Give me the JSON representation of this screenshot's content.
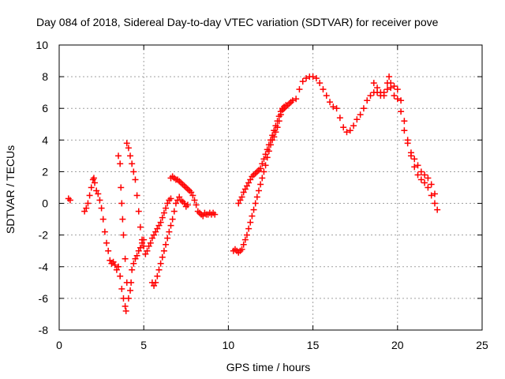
{
  "chart_data": {
    "type": "scatter",
    "title": "Day 084 of 2018, Sidereal Day-to-day VTEC variation (SDTVAR) for receiver pove",
    "xlabel": "GPS time / hours",
    "ylabel": "SDTVAR / TECUs",
    "xlim": [
      0,
      25
    ],
    "ylim": [
      -8,
      10
    ],
    "xticks": [
      "0",
      "5",
      "10",
      "15",
      "20",
      "25"
    ],
    "yticks": [
      "-8",
      "-6",
      "-4",
      "-2",
      "0",
      "2",
      "4",
      "6",
      "8",
      "10"
    ],
    "grid": true,
    "marker": "+",
    "color": "#ff0000",
    "series": [
      {
        "points": [
          [
            0.55,
            0.3
          ],
          [
            0.65,
            0.2
          ],
          [
            1.5,
            -0.5
          ],
          [
            1.6,
            -0.3
          ],
          [
            1.7,
            0.0
          ],
          [
            1.8,
            0.5
          ],
          [
            1.9,
            1.0
          ],
          [
            2.0,
            1.5
          ],
          [
            2.05,
            1.6
          ],
          [
            2.1,
            1.3
          ],
          [
            2.2,
            0.8
          ],
          [
            2.3,
            0.6
          ],
          [
            2.4,
            0.2
          ],
          [
            2.5,
            -0.3
          ],
          [
            2.6,
            -1.0
          ],
          [
            2.7,
            -1.8
          ],
          [
            2.8,
            -2.5
          ],
          [
            2.9,
            -3.0
          ],
          [
            3.0,
            -3.6
          ],
          [
            3.1,
            -3.8
          ],
          [
            3.2,
            -3.7
          ],
          [
            3.3,
            -3.9
          ],
          [
            3.4,
            -4.2
          ],
          [
            3.5,
            -4.0
          ],
          [
            3.6,
            -4.6
          ],
          [
            3.7,
            -5.4
          ],
          [
            3.8,
            -6.0
          ],
          [
            3.9,
            -6.5
          ],
          [
            3.95,
            -6.8
          ],
          [
            3.5,
            3.0
          ],
          [
            3.6,
            2.5
          ],
          [
            3.65,
            1.0
          ],
          [
            3.7,
            0.0
          ],
          [
            3.75,
            -1.0
          ],
          [
            3.8,
            -2.0
          ],
          [
            3.9,
            -3.5
          ],
          [
            4.0,
            -5.0
          ],
          [
            4.1,
            -6.0
          ],
          [
            4.2,
            -5.5
          ],
          [
            4.25,
            -5.0
          ],
          [
            4.3,
            -4.2
          ],
          [
            4.4,
            -3.8
          ],
          [
            4.5,
            -3.5
          ],
          [
            4.6,
            -3.3
          ],
          [
            4.7,
            -3.0
          ],
          [
            4.8,
            -2.8
          ],
          [
            4.9,
            -2.5
          ],
          [
            5.0,
            -2.3
          ],
          [
            4.0,
            3.8
          ],
          [
            4.1,
            3.5
          ],
          [
            4.2,
            3.0
          ],
          [
            4.3,
            2.5
          ],
          [
            4.4,
            2.0
          ],
          [
            4.5,
            1.5
          ],
          [
            4.6,
            0.5
          ],
          [
            4.7,
            -0.5
          ],
          [
            4.8,
            -1.5
          ],
          [
            4.9,
            -2.3
          ],
          [
            5.0,
            -2.7
          ],
          [
            5.1,
            -3.2
          ],
          [
            5.2,
            -3.0
          ],
          [
            5.3,
            -2.7
          ],
          [
            5.4,
            -2.5
          ],
          [
            5.5,
            -2.2
          ],
          [
            5.6,
            -2.0
          ],
          [
            5.7,
            -1.8
          ],
          [
            5.8,
            -1.6
          ],
          [
            5.9,
            -1.4
          ],
          [
            6.0,
            -1.2
          ],
          [
            6.1,
            -0.9
          ],
          [
            6.2,
            -0.6
          ],
          [
            6.3,
            -0.3
          ],
          [
            6.4,
            0.0
          ],
          [
            6.5,
            0.2
          ],
          [
            6.6,
            0.3
          ],
          [
            5.5,
            -5.0
          ],
          [
            5.6,
            -5.2
          ],
          [
            5.7,
            -5.0
          ],
          [
            5.8,
            -4.6
          ],
          [
            5.9,
            -4.2
          ],
          [
            6.0,
            -3.8
          ],
          [
            6.1,
            -3.4
          ],
          [
            6.2,
            -3.0
          ],
          [
            6.3,
            -2.6
          ],
          [
            6.4,
            -2.2
          ],
          [
            6.5,
            -1.8
          ],
          [
            6.6,
            -1.4
          ],
          [
            6.7,
            -1.0
          ],
          [
            6.8,
            -0.5
          ],
          [
            6.9,
            0.0
          ],
          [
            7.0,
            0.2
          ],
          [
            7.1,
            0.4
          ],
          [
            7.2,
            0.2
          ],
          [
            7.3,
            0.1
          ],
          [
            7.4,
            0.0
          ],
          [
            7.5,
            -0.2
          ],
          [
            7.6,
            -0.1
          ],
          [
            6.6,
            1.6
          ],
          [
            6.7,
            1.7
          ],
          [
            6.8,
            1.6
          ],
          [
            6.9,
            1.5
          ],
          [
            7.0,
            1.5
          ],
          [
            7.1,
            1.4
          ],
          [
            7.2,
            1.3
          ],
          [
            7.3,
            1.2
          ],
          [
            7.4,
            1.1
          ],
          [
            7.5,
            1.0
          ],
          [
            7.6,
            0.9
          ],
          [
            7.7,
            0.8
          ],
          [
            7.8,
            0.7
          ],
          [
            7.9,
            0.5
          ],
          [
            8.0,
            0.2
          ],
          [
            8.1,
            -0.1
          ],
          [
            8.2,
            -0.5
          ],
          [
            8.3,
            -0.6
          ],
          [
            8.4,
            -0.7
          ],
          [
            8.5,
            -0.8
          ],
          [
            8.6,
            -0.6
          ],
          [
            8.7,
            -0.7
          ],
          [
            8.8,
            -0.7
          ],
          [
            8.9,
            -0.6
          ],
          [
            9.0,
            -0.7
          ],
          [
            9.1,
            -0.6
          ],
          [
            9.2,
            -0.7
          ],
          [
            10.3,
            -3.0
          ],
          [
            10.4,
            -2.9
          ],
          [
            10.5,
            -3.0
          ],
          [
            10.6,
            -3.1
          ],
          [
            10.7,
            -3.0
          ],
          [
            10.8,
            -2.9
          ],
          [
            10.9,
            -2.6
          ],
          [
            11.0,
            -2.3
          ],
          [
            11.1,
            -2.0
          ],
          [
            11.2,
            -1.6
          ],
          [
            11.3,
            -1.2
          ],
          [
            11.4,
            -0.8
          ],
          [
            11.5,
            -0.4
          ],
          [
            11.6,
            0.0
          ],
          [
            11.7,
            0.4
          ],
          [
            11.8,
            0.8
          ],
          [
            11.9,
            1.2
          ],
          [
            12.0,
            1.6
          ],
          [
            12.1,
            2.0
          ],
          [
            12.2,
            2.4
          ],
          [
            12.3,
            2.9
          ],
          [
            12.4,
            3.3
          ],
          [
            12.5,
            3.7
          ],
          [
            12.6,
            4.0
          ],
          [
            12.7,
            4.2
          ],
          [
            12.8,
            4.5
          ],
          [
            12.9,
            4.8
          ],
          [
            13.0,
            5.2
          ],
          [
            13.1,
            5.6
          ],
          [
            13.2,
            5.9
          ],
          [
            13.3,
            6.0
          ],
          [
            13.4,
            6.1
          ],
          [
            13.5,
            6.2
          ],
          [
            13.6,
            6.3
          ],
          [
            13.7,
            6.4
          ],
          [
            13.8,
            6.5
          ],
          [
            10.6,
            0.0
          ],
          [
            10.7,
            0.2
          ],
          [
            10.8,
            0.4
          ],
          [
            10.9,
            0.7
          ],
          [
            11.0,
            0.9
          ],
          [
            11.1,
            1.1
          ],
          [
            11.2,
            1.3
          ],
          [
            11.3,
            1.5
          ],
          [
            11.4,
            1.7
          ],
          [
            11.5,
            1.8
          ],
          [
            11.6,
            1.9
          ],
          [
            11.7,
            2.0
          ],
          [
            11.8,
            2.1
          ],
          [
            11.9,
            2.2
          ],
          [
            12.0,
            2.5
          ],
          [
            12.1,
            2.8
          ],
          [
            12.2,
            3.1
          ],
          [
            12.3,
            3.4
          ],
          [
            12.4,
            3.7
          ],
          [
            12.5,
            4.0
          ],
          [
            12.6,
            4.3
          ],
          [
            12.7,
            4.6
          ],
          [
            12.8,
            4.9
          ],
          [
            12.9,
            5.2
          ],
          [
            13.0,
            5.5
          ],
          [
            13.1,
            5.8
          ],
          [
            13.2,
            6.0
          ],
          [
            13.3,
            6.1
          ],
          [
            13.4,
            6.2
          ],
          [
            14.0,
            6.6
          ],
          [
            14.2,
            7.2
          ],
          [
            14.4,
            7.7
          ],
          [
            14.6,
            7.9
          ],
          [
            14.8,
            8.0
          ],
          [
            15.0,
            8.0
          ],
          [
            15.2,
            7.9
          ],
          [
            15.4,
            7.6
          ],
          [
            15.6,
            7.2
          ],
          [
            15.8,
            6.8
          ],
          [
            16.0,
            6.4
          ],
          [
            16.2,
            6.1
          ],
          [
            16.4,
            6.0
          ],
          [
            16.6,
            5.4
          ],
          [
            16.8,
            4.8
          ],
          [
            17.0,
            4.5
          ],
          [
            17.2,
            4.6
          ],
          [
            17.4,
            4.9
          ],
          [
            17.6,
            5.3
          ],
          [
            17.8,
            5.6
          ],
          [
            18.0,
            6.0
          ],
          [
            18.2,
            6.5
          ],
          [
            18.4,
            6.8
          ],
          [
            18.6,
            7.0
          ],
          [
            18.8,
            7.0
          ],
          [
            19.0,
            6.8
          ],
          [
            19.2,
            7.0
          ],
          [
            19.4,
            7.2
          ],
          [
            19.6,
            7.3
          ],
          [
            19.8,
            7.4
          ],
          [
            20.0,
            7.2
          ],
          [
            20.2,
            6.5
          ],
          [
            20.4,
            5.2
          ],
          [
            20.6,
            4.0
          ],
          [
            20.8,
            3.0
          ],
          [
            21.0,
            2.3
          ],
          [
            21.2,
            1.8
          ],
          [
            21.4,
            1.5
          ],
          [
            21.6,
            1.3
          ],
          [
            21.8,
            1.0
          ],
          [
            22.0,
            0.5
          ],
          [
            22.2,
            0.0
          ],
          [
            22.35,
            -0.4
          ],
          [
            18.6,
            7.6
          ],
          [
            18.8,
            7.3
          ],
          [
            19.0,
            7.0
          ],
          [
            19.2,
            6.8
          ],
          [
            19.4,
            7.6
          ],
          [
            19.5,
            8.0
          ],
          [
            19.6,
            7.6
          ],
          [
            19.8,
            6.8
          ],
          [
            20.0,
            6.6
          ],
          [
            20.2,
            5.8
          ],
          [
            20.4,
            4.6
          ],
          [
            20.6,
            3.8
          ],
          [
            20.8,
            3.2
          ],
          [
            21.0,
            2.8
          ],
          [
            21.2,
            2.4
          ],
          [
            21.4,
            2.0
          ],
          [
            21.6,
            1.8
          ],
          [
            21.8,
            1.6
          ],
          [
            22.0,
            1.2
          ],
          [
            22.2,
            0.6
          ]
        ]
      }
    ]
  }
}
